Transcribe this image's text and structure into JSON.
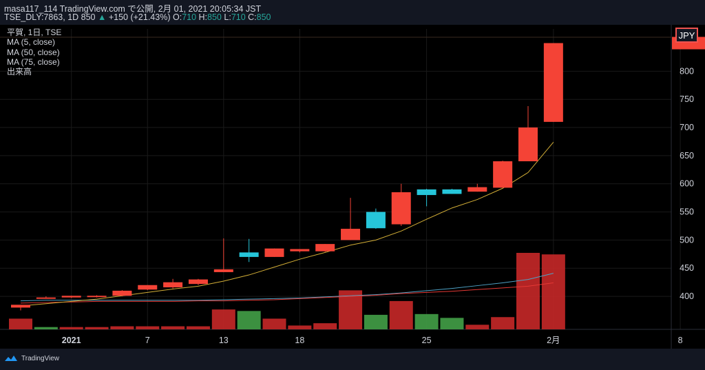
{
  "header": {
    "line1": "masa117_114 TradingView.com で公開, 2月 01, 2021 20:05:34 JST",
    "symbol": "TSE_DLY:7863, 1D 850",
    "change_arrow": "▲",
    "change": "+150 (+21.43%)",
    "o_label": "O:",
    "o_value": "710",
    "h_label": "H:",
    "h_value": "850",
    "l_label": "L:",
    "l_value": "710",
    "c_label": "C:",
    "c_value": "850"
  },
  "legend": {
    "title": "平賀, 1日, TSE",
    "ma5": "MA (5, close)",
    "ma50": "MA (50, close)",
    "ma75": "MA (75, close)",
    "volume": "出来高"
  },
  "currency": "JPY",
  "footer": {
    "brand": "TradingView"
  },
  "colors": {
    "bull": "#f44336",
    "bear": "#26c6da",
    "vol_up": "#c62828",
    "vol_down": "#43a047",
    "ma5": "#d4af37",
    "ma50": "#e53935",
    "ma75": "#4fa3c7",
    "grid": "#1a1a1a",
    "text": "#d1d4dc"
  },
  "chart_data": {
    "type": "candlestick",
    "title": "",
    "y_ticks": [
      400,
      450,
      500,
      550,
      600,
      650,
      700,
      750,
      800
    ],
    "ylim": [
      345,
      858
    ],
    "x_ticks": [
      {
        "index": 2,
        "label": "2021"
      },
      {
        "index": 5,
        "label": "7"
      },
      {
        "index": 8,
        "label": "13"
      },
      {
        "index": 11,
        "label": "18"
      },
      {
        "index": 16,
        "label": "25"
      },
      {
        "index": 21,
        "label": "2月"
      },
      {
        "index": 26,
        "label": "8"
      }
    ],
    "candles": [
      {
        "o": 380,
        "h": 385,
        "l": 375,
        "c": 385
      },
      {
        "o": 398,
        "h": 400,
        "l": 397,
        "c": 398
      },
      {
        "o": 398,
        "h": 401,
        "l": 397,
        "c": 401
      },
      {
        "o": 399,
        "h": 402,
        "l": 398,
        "c": 401
      },
      {
        "o": 401,
        "h": 411,
        "l": 400,
        "c": 410
      },
      {
        "o": 412,
        "h": 420,
        "l": 411,
        "c": 420
      },
      {
        "o": 416,
        "h": 431,
        "l": 414,
        "c": 425
      },
      {
        "o": 422,
        "h": 431,
        "l": 420,
        "c": 430
      },
      {
        "o": 443,
        "h": 503,
        "l": 443,
        "c": 448
      },
      {
        "o": 478,
        "h": 502,
        "l": 461,
        "c": 470
      },
      {
        "o": 470,
        "h": 485,
        "l": 470,
        "c": 485
      },
      {
        "o": 480,
        "h": 484,
        "l": 478,
        "c": 484
      },
      {
        "o": 480,
        "h": 493,
        "l": 479,
        "c": 493
      },
      {
        "o": 500,
        "h": 575,
        "l": 500,
        "c": 520
      },
      {
        "o": 550,
        "h": 556,
        "l": 520,
        "c": 521
      },
      {
        "o": 528,
        "h": 600,
        "l": 525,
        "c": 585
      },
      {
        "o": 590,
        "h": 591,
        "l": 560,
        "c": 580
      },
      {
        "o": 590,
        "h": 591,
        "l": 582,
        "c": 582
      },
      {
        "o": 586,
        "h": 600,
        "l": 586,
        "c": 594
      },
      {
        "o": 593,
        "h": 641,
        "l": 593,
        "c": 640
      },
      {
        "o": 640,
        "h": 738,
        "l": 640,
        "c": 700
      },
      {
        "o": 710,
        "h": 850,
        "l": 710,
        "c": 850
      }
    ],
    "ma5": [
      383,
      387,
      391,
      395,
      401,
      407,
      413,
      418,
      427,
      438,
      452,
      466,
      478,
      491,
      500,
      516,
      537,
      557,
      572,
      592,
      620,
      674
    ],
    "ma50": [
      388,
      389,
      390,
      391,
      391,
      391,
      391,
      392,
      392,
      393,
      394,
      396,
      398,
      400,
      402,
      405,
      407,
      409,
      412,
      415,
      418,
      424
    ],
    "ma75": [
      392,
      393,
      393,
      393,
      393,
      393,
      393,
      393,
      394,
      395,
      396,
      397,
      399,
      401,
      403,
      406,
      410,
      414,
      419,
      424,
      430,
      441
    ],
    "volume_relative": [
      0.14,
      0.03,
      0.03,
      0.03,
      0.04,
      0.04,
      0.04,
      0.04,
      0.26,
      0.24,
      0.14,
      0.05,
      0.08,
      0.51,
      0.19,
      0.37,
      0.2,
      0.15,
      0.06,
      0.16,
      1.0,
      0.98
    ],
    "volume_up": [
      true,
      false,
      true,
      true,
      true,
      true,
      true,
      true,
      true,
      false,
      true,
      true,
      true,
      true,
      false,
      true,
      false,
      false,
      true,
      true,
      true,
      true
    ]
  }
}
